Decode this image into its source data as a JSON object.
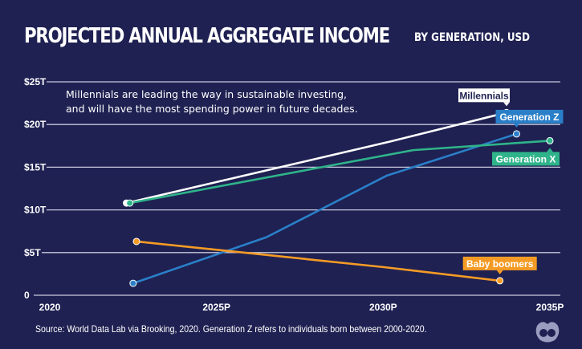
{
  "title": "PROJECTED ANNUAL AGGREGATE INCOME",
  "subtitle": "BY GENERATION, USD",
  "annotation_line1": "Millennials are leading the way in sustainable investing,",
  "annotation_line2": "and will have the most spending power in future decades.",
  "source": "Source: World Data Lab via Brooking, 2020. Generation Z refers to individuals born between 2000-2020.",
  "logo": "Visual Capitalist",
  "chart_data": {
    "type": "line",
    "title": "PROJECTED ANNUAL AGGREGATE INCOME",
    "subtitle": "BY GENERATION, USD",
    "xlim": [
      2020,
      2035
    ],
    "ylim": [
      0,
      25
    ],
    "x_ticks": [
      {
        "v": 2020,
        "label": "2020"
      },
      {
        "v": 2025,
        "label": "2025P"
      },
      {
        "v": 2030,
        "label": "2030P"
      },
      {
        "v": 2035,
        "label": "2035P"
      }
    ],
    "y_ticks": [
      {
        "v": 0,
        "label": "0"
      },
      {
        "v": 5,
        "label": "$5T"
      },
      {
        "v": 10,
        "label": "$10T"
      },
      {
        "v": 15,
        "label": "$15T"
      },
      {
        "v": 20,
        "label": "$20T"
      },
      {
        "v": 25,
        "label": "$25T"
      }
    ],
    "grid": "horizontal",
    "series": [
      {
        "name": "Millennials",
        "color": "#ffffff",
        "label_text_color": "#1f2152",
        "points": [
          [
            2022.3,
            10.8
          ],
          [
            2030.2,
            18.0
          ],
          [
            2033.7,
            21.4
          ]
        ]
      },
      {
        "name": "Generation Z",
        "color": "#2a7fc8",
        "label_text_color": "#ffffff",
        "points": [
          [
            2022.5,
            1.4
          ],
          [
            2026.5,
            6.8
          ],
          [
            2030.1,
            14.0
          ],
          [
            2034.0,
            18.9
          ]
        ]
      },
      {
        "name": "Generation X",
        "color": "#2fb48a",
        "label_text_color": "#ffffff",
        "points": [
          [
            2022.4,
            10.8
          ],
          [
            2030.9,
            17.0
          ],
          [
            2035.0,
            18.1
          ]
        ]
      },
      {
        "name": "Baby boomers",
        "color": "#f59b25",
        "label_text_color": "#ffffff",
        "points": [
          [
            2022.6,
            6.3
          ],
          [
            2030.0,
            3.3
          ],
          [
            2033.5,
            1.7
          ]
        ]
      }
    ]
  }
}
